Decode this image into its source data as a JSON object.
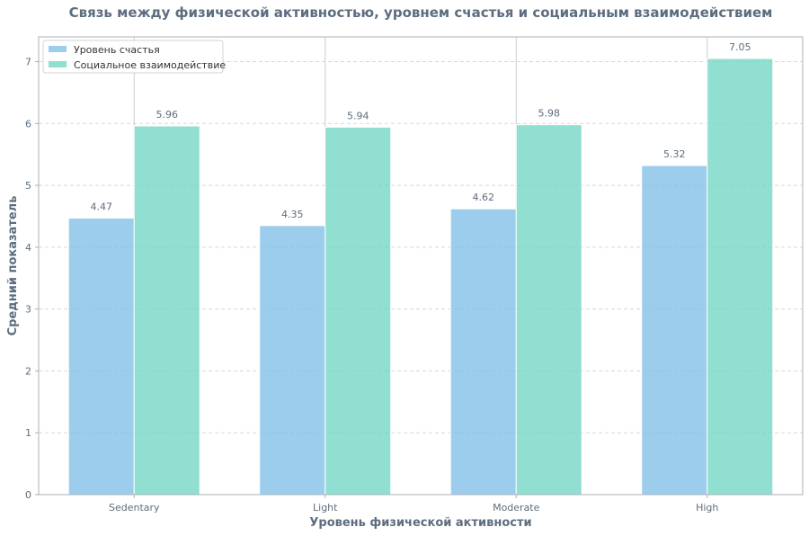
{
  "chart_data": {
    "type": "bar",
    "title": "Связь между физической активностью, уровнем счастья и социальным взаимодействием",
    "xlabel": "Уровень физической активности",
    "ylabel": "Средний показатель",
    "categories": [
      "Sedentary",
      "Light",
      "Moderate",
      "High"
    ],
    "series": [
      {
        "name": "Уровень счастья",
        "values": [
          4.47,
          4.35,
          4.62,
          5.32
        ],
        "color": "#85c1e9"
      },
      {
        "name": "Социальное взаимодействие",
        "values": [
          5.96,
          5.94,
          5.98,
          7.05
        ],
        "color": "#76d7c4"
      }
    ],
    "ylim": [
      0,
      7.4
    ],
    "yticks": [
      "0",
      "1",
      "2",
      "3",
      "4",
      "5",
      "6",
      "7"
    ],
    "value_labels": [
      [
        "4.47",
        "4.35",
        "4.62",
        "5.32"
      ],
      [
        "5.96",
        "5.94",
        "5.98",
        "7.05"
      ]
    ],
    "grid": "y-dashed",
    "legend_position": "top-left"
  }
}
